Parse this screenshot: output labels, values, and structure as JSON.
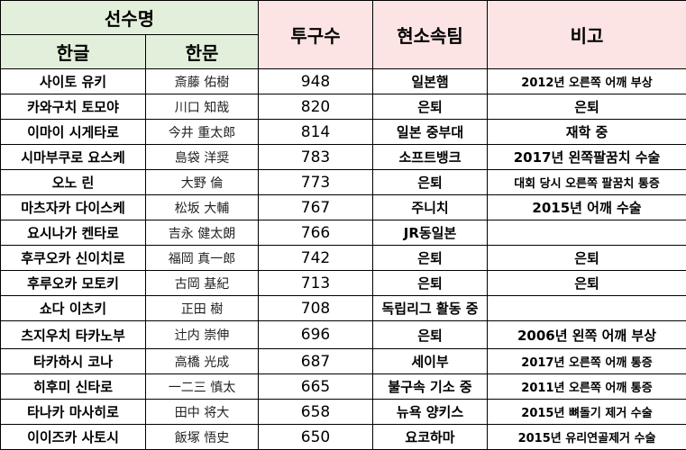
{
  "header": {
    "player_name": "선수명",
    "hangul": "한글",
    "hanja": "한문",
    "pitches": "투구수",
    "current_team": "현소속팀",
    "remarks": "비고"
  },
  "rows": [
    {
      "hangul": "사이토 유키",
      "hanja": "斎藤 佑樹",
      "pitches": "948",
      "team": "일본햄",
      "note": "2012년 오른쪽 어깨 부상"
    },
    {
      "hangul": "카와구치 토모야",
      "hanja": "川口 知哉",
      "pitches": "820",
      "team": "은퇴",
      "note": "은퇴"
    },
    {
      "hangul": "이마이 시게타로",
      "hanja": "今井 重太郎",
      "pitches": "814",
      "team": "일본 중부대",
      "note": "재학 중"
    },
    {
      "hangul": "시마부쿠로 요스케",
      "hanja": "島袋 洋奨",
      "pitches": "783",
      "team": "소프트뱅크",
      "note": "2017년 왼쪽팔꿈치 수술"
    },
    {
      "hangul": "오노 린",
      "hanja": "大野 倫",
      "pitches": "773",
      "team": "은퇴",
      "note": "대회 당시 오른쪽 팔꿈치 통증"
    },
    {
      "hangul": "마츠자카 다이스케",
      "hanja": "松坂 大輔",
      "pitches": "767",
      "team": "주니치",
      "note": "2015년 어깨 수술"
    },
    {
      "hangul": "요시나가 켄타로",
      "hanja": "吉永 健太朗",
      "pitches": "766",
      "team": "JR동일본",
      "note": ""
    },
    {
      "hangul": "후쿠오카 신이치로",
      "hanja": "福岡 真一郎",
      "pitches": "742",
      "team": "은퇴",
      "note": "은퇴"
    },
    {
      "hangul": "후루오카 모토키",
      "hanja": "古岡 基紀",
      "pitches": "713",
      "team": "은퇴",
      "note": "은퇴"
    },
    {
      "hangul": "쇼다 이츠키",
      "hanja": "正田 樹",
      "pitches": "708",
      "team": "독립리그 활동 중",
      "note": ""
    },
    {
      "hangul": "츠지우치 타카노부",
      "hanja": "辻内 崇伸",
      "pitches": "696",
      "team": "은퇴",
      "note": "2006년 왼쪽 어깨 부상"
    },
    {
      "hangul": "타카하시 코나",
      "hanja": "高橋 光成",
      "pitches": "687",
      "team": "세이부",
      "note": "2017년 오른쪽 어깨 통증"
    },
    {
      "hangul": "히후미 신타로",
      "hanja": "一二三 慎太",
      "pitches": "665",
      "team": "불구속 기소 중",
      "note": "2011년 오른쪽 어깨 통증"
    },
    {
      "hangul": "타나카 마사히로",
      "hanja": "田中 将大",
      "pitches": "658",
      "team": "뉴욕 양키스",
      "note": "2015년 뼈돌기 제거 수술"
    },
    {
      "hangul": "이이즈카 사토시",
      "hanja": "飯塚 悟史",
      "pitches": "650",
      "team": "요코하마",
      "note": "2015년 유리연골제거 수술"
    }
  ]
}
